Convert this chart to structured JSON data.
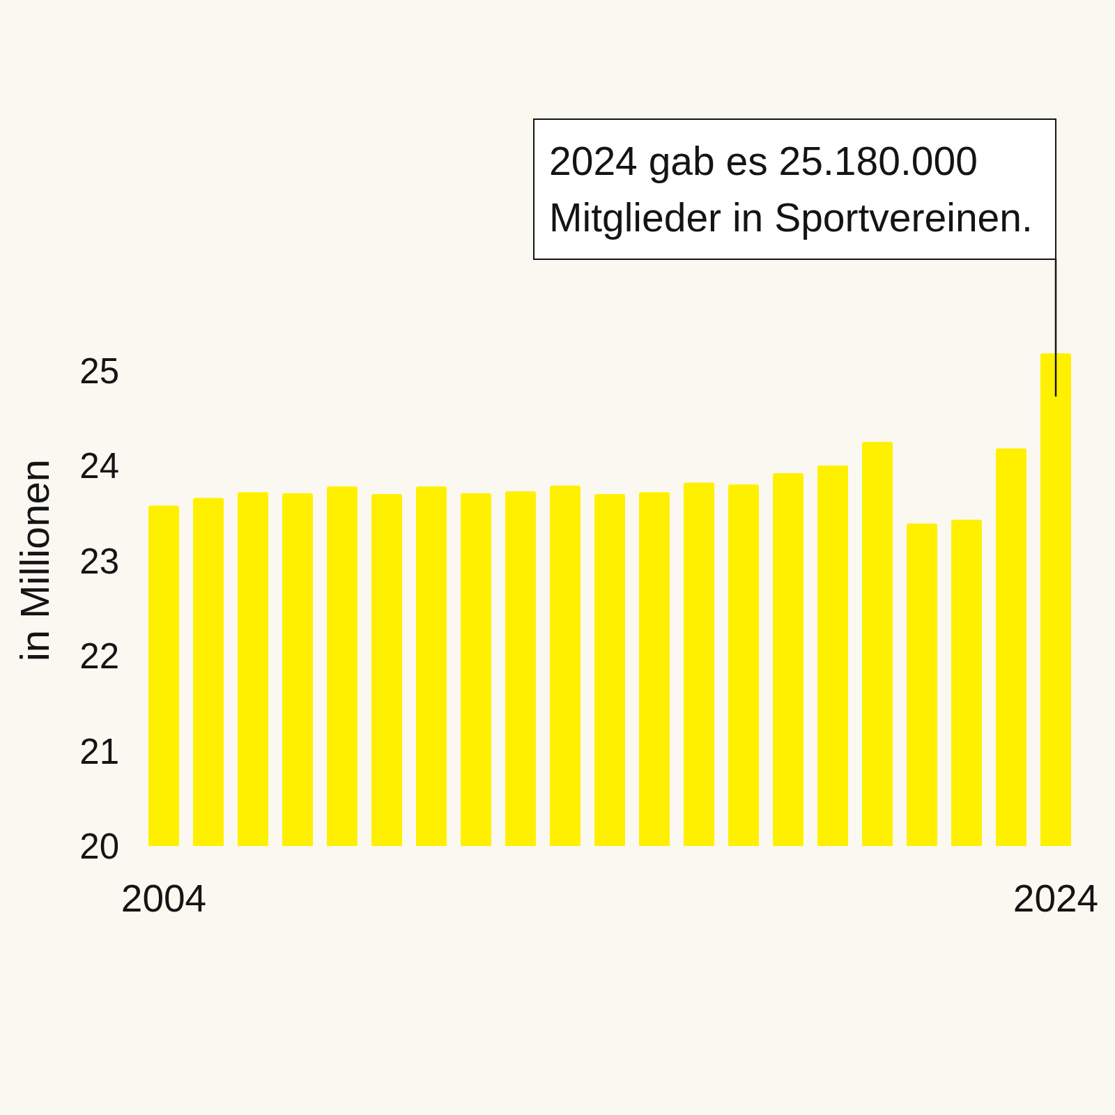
{
  "chart_data": {
    "type": "bar",
    "categories": [
      "2004",
      null,
      null,
      null,
      null,
      null,
      null,
      null,
      null,
      null,
      null,
      null,
      null,
      null,
      null,
      null,
      null,
      null,
      null,
      null,
      "2024"
    ],
    "values": [
      23.58,
      23.66,
      23.72,
      23.71,
      23.78,
      23.7,
      23.78,
      23.71,
      23.73,
      23.79,
      23.7,
      23.72,
      23.82,
      23.8,
      23.92,
      24.0,
      24.25,
      23.39,
      23.43,
      24.18,
      25.18
    ],
    "color": "#fff000",
    "ylabel": "in Millionen",
    "ylim": [
      20,
      25.18
    ],
    "yticks": [
      20,
      21,
      22,
      23,
      24,
      25
    ],
    "annotations": [
      "2024 gab es 25.180.000 Mitglieder in Sportvereinen."
    ]
  }
}
